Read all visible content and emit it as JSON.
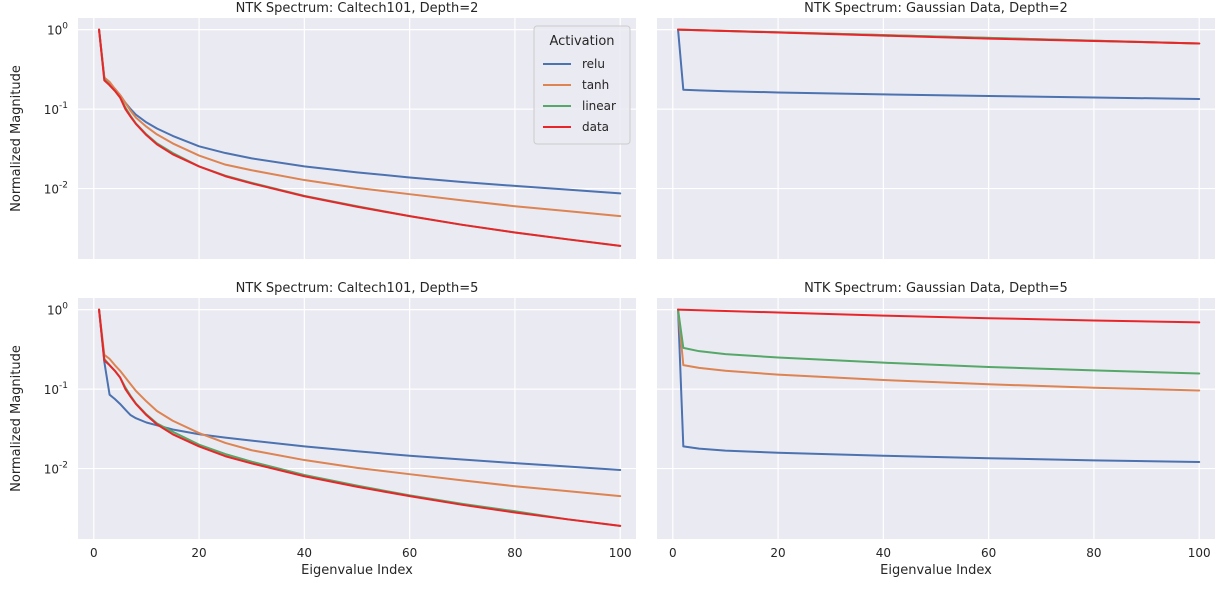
{
  "chart_data": [
    {
      "type": "line",
      "title": "NTK Spectrum: Caltech101, Depth=2",
      "xlabel": "",
      "ylabel": "Normalized Magnitude",
      "yscale": "log",
      "xlim": [
        -3,
        103
      ],
      "ylim": [
        0.0013,
        1.4
      ],
      "xticks": [],
      "yticks": [
        "10^0",
        "10^-1",
        "10^-2"
      ],
      "grid": true,
      "legend": {
        "title": "Activation",
        "position": "top-right",
        "entries": [
          "relu",
          "tanh",
          "linear",
          "data"
        ]
      },
      "series": [
        {
          "name": "relu",
          "color": "#4C72B0",
          "x": [
            1,
            2,
            3,
            4,
            5,
            6,
            7,
            8,
            10,
            12,
            15,
            20,
            25,
            30,
            40,
            50,
            60,
            70,
            80,
            90,
            100
          ],
          "y": [
            1.0,
            0.25,
            0.21,
            0.18,
            0.15,
            0.12,
            0.1,
            0.085,
            0.068,
            0.057,
            0.046,
            0.034,
            0.028,
            0.024,
            0.019,
            0.016,
            0.0138,
            0.0121,
            0.0108,
            0.0097,
            0.0087
          ]
        },
        {
          "name": "tanh",
          "color": "#DD8452",
          "x": [
            1,
            2,
            3,
            4,
            5,
            6,
            7,
            8,
            10,
            12,
            15,
            20,
            25,
            30,
            40,
            50,
            60,
            70,
            80,
            90,
            100
          ],
          "y": [
            1.0,
            0.25,
            0.22,
            0.18,
            0.15,
            0.12,
            0.095,
            0.078,
            0.06,
            0.048,
            0.037,
            0.026,
            0.02,
            0.017,
            0.0128,
            0.0102,
            0.0085,
            0.0071,
            0.006,
            0.0052,
            0.0045
          ]
        },
        {
          "name": "linear",
          "color": "#55A868",
          "x": [
            1,
            2,
            3,
            4,
            5,
            6,
            7,
            8,
            10,
            12,
            15,
            20,
            25,
            30,
            40,
            50,
            60,
            70,
            80,
            90,
            100
          ],
          "y": [
            1.0,
            0.24,
            0.2,
            0.17,
            0.14,
            0.105,
            0.082,
            0.066,
            0.048,
            0.037,
            0.028,
            0.019,
            0.0145,
            0.0118,
            0.0081,
            0.006,
            0.0045,
            0.0035,
            0.0028,
            0.0023,
            0.0019
          ]
        },
        {
          "name": "data",
          "color": "#E8262A",
          "x": [
            1,
            2,
            3,
            4,
            5,
            6,
            7,
            8,
            10,
            12,
            15,
            20,
            25,
            30,
            40,
            50,
            60,
            70,
            80,
            90,
            100
          ],
          "y": [
            1.0,
            0.23,
            0.2,
            0.17,
            0.14,
            0.1,
            0.08,
            0.065,
            0.047,
            0.036,
            0.027,
            0.019,
            0.0143,
            0.0116,
            0.008,
            0.0059,
            0.0045,
            0.0035,
            0.0028,
            0.0023,
            0.0019
          ]
        }
      ]
    },
    {
      "type": "line",
      "title": "NTK Spectrum: Gaussian Data, Depth=2",
      "xlabel": "",
      "ylabel": "",
      "yscale": "log",
      "xlim": [
        -3,
        103
      ],
      "ylim": [
        0.0013,
        1.4
      ],
      "xticks": [],
      "yticks": [],
      "grid": true,
      "series": [
        {
          "name": "relu",
          "color": "#4C72B0",
          "x": [
            1,
            2,
            5,
            10,
            20,
            40,
            60,
            80,
            100
          ],
          "y": [
            1.0,
            0.175,
            0.172,
            0.168,
            0.162,
            0.153,
            0.146,
            0.14,
            0.134
          ]
        },
        {
          "name": "tanh",
          "color": "#DD8452",
          "x": [
            1,
            100
          ],
          "y": [
            1.0,
            0.67
          ]
        },
        {
          "name": "linear",
          "color": "#55A868",
          "x": [
            1,
            100
          ],
          "y": [
            1.0,
            0.67
          ]
        },
        {
          "name": "data",
          "color": "#E8262A",
          "x": [
            1,
            10,
            20,
            40,
            60,
            80,
            100
          ],
          "y": [
            1.0,
            0.96,
            0.92,
            0.84,
            0.77,
            0.72,
            0.67
          ]
        }
      ]
    },
    {
      "type": "line",
      "title": "NTK Spectrum: Caltech101, Depth=5",
      "xlabel": "Eigenvalue Index",
      "ylabel": "Normalized Magnitude",
      "yscale": "log",
      "xlim": [
        -3,
        103
      ],
      "ylim": [
        0.0013,
        1.4
      ],
      "xticks": [
        0,
        20,
        40,
        60,
        80,
        100
      ],
      "yticks": [
        "10^0",
        "10^-1",
        "10^-2"
      ],
      "grid": true,
      "series": [
        {
          "name": "relu",
          "color": "#4C72B0",
          "x": [
            1,
            2,
            3,
            4,
            5,
            6,
            7,
            8,
            10,
            12,
            15,
            20,
            25,
            30,
            40,
            50,
            60,
            70,
            80,
            90,
            100
          ],
          "y": [
            1.0,
            0.22,
            0.085,
            0.075,
            0.065,
            0.055,
            0.047,
            0.043,
            0.038,
            0.035,
            0.031,
            0.027,
            0.0245,
            0.0225,
            0.019,
            0.0165,
            0.0145,
            0.013,
            0.0117,
            0.0106,
            0.0096
          ]
        },
        {
          "name": "tanh",
          "color": "#DD8452",
          "x": [
            1,
            2,
            3,
            4,
            5,
            6,
            7,
            8,
            10,
            12,
            15,
            20,
            25,
            30,
            40,
            50,
            60,
            70,
            80,
            90,
            100
          ],
          "y": [
            1.0,
            0.27,
            0.24,
            0.2,
            0.17,
            0.14,
            0.115,
            0.095,
            0.07,
            0.053,
            0.04,
            0.028,
            0.021,
            0.017,
            0.0128,
            0.0102,
            0.0085,
            0.0071,
            0.006,
            0.0052,
            0.0045
          ]
        },
        {
          "name": "linear",
          "color": "#55A868",
          "x": [
            1,
            2,
            3,
            4,
            5,
            6,
            7,
            8,
            10,
            12,
            15,
            20,
            25,
            30,
            40,
            50,
            60,
            70,
            80,
            90,
            100
          ],
          "y": [
            1.0,
            0.24,
            0.2,
            0.17,
            0.14,
            0.105,
            0.082,
            0.066,
            0.048,
            0.037,
            0.029,
            0.02,
            0.0152,
            0.0122,
            0.0083,
            0.0061,
            0.0046,
            0.0036,
            0.0029,
            0.0023,
            0.0019
          ]
        },
        {
          "name": "data",
          "color": "#E8262A",
          "x": [
            1,
            2,
            3,
            4,
            5,
            6,
            7,
            8,
            10,
            12,
            15,
            20,
            25,
            30,
            40,
            50,
            60,
            70,
            80,
            90,
            100
          ],
          "y": [
            1.0,
            0.23,
            0.2,
            0.17,
            0.14,
            0.1,
            0.08,
            0.065,
            0.047,
            0.036,
            0.027,
            0.019,
            0.0143,
            0.0116,
            0.008,
            0.0059,
            0.0045,
            0.0035,
            0.0028,
            0.0023,
            0.0019
          ]
        }
      ]
    },
    {
      "type": "line",
      "title": "NTK Spectrum: Gaussian Data, Depth=5",
      "xlabel": "Eigenvalue Index",
      "ylabel": "",
      "yscale": "log",
      "xlim": [
        -3,
        103
      ],
      "ylim": [
        0.0013,
        1.4
      ],
      "xticks": [
        0,
        20,
        40,
        60,
        80,
        100
      ],
      "yticks": [],
      "grid": true,
      "series": [
        {
          "name": "relu",
          "color": "#4C72B0",
          "x": [
            1,
            2,
            5,
            10,
            20,
            40,
            60,
            80,
            100
          ],
          "y": [
            1.0,
            0.019,
            0.0178,
            0.0168,
            0.0158,
            0.0145,
            0.0135,
            0.0127,
            0.0121
          ]
        },
        {
          "name": "tanh",
          "color": "#DD8452",
          "x": [
            1,
            2,
            5,
            10,
            20,
            40,
            60,
            80,
            100
          ],
          "y": [
            1.0,
            0.2,
            0.185,
            0.17,
            0.152,
            0.13,
            0.115,
            0.104,
            0.096
          ]
        },
        {
          "name": "linear",
          "color": "#55A868",
          "x": [
            1,
            2,
            5,
            10,
            20,
            40,
            60,
            80,
            100
          ],
          "y": [
            1.0,
            0.33,
            0.3,
            0.275,
            0.25,
            0.215,
            0.19,
            0.172,
            0.157
          ]
        },
        {
          "name": "data",
          "color": "#E8262A",
          "x": [
            1,
            10,
            20,
            40,
            60,
            80,
            100
          ],
          "y": [
            1.0,
            0.96,
            0.92,
            0.84,
            0.78,
            0.73,
            0.69
          ]
        }
      ]
    }
  ]
}
